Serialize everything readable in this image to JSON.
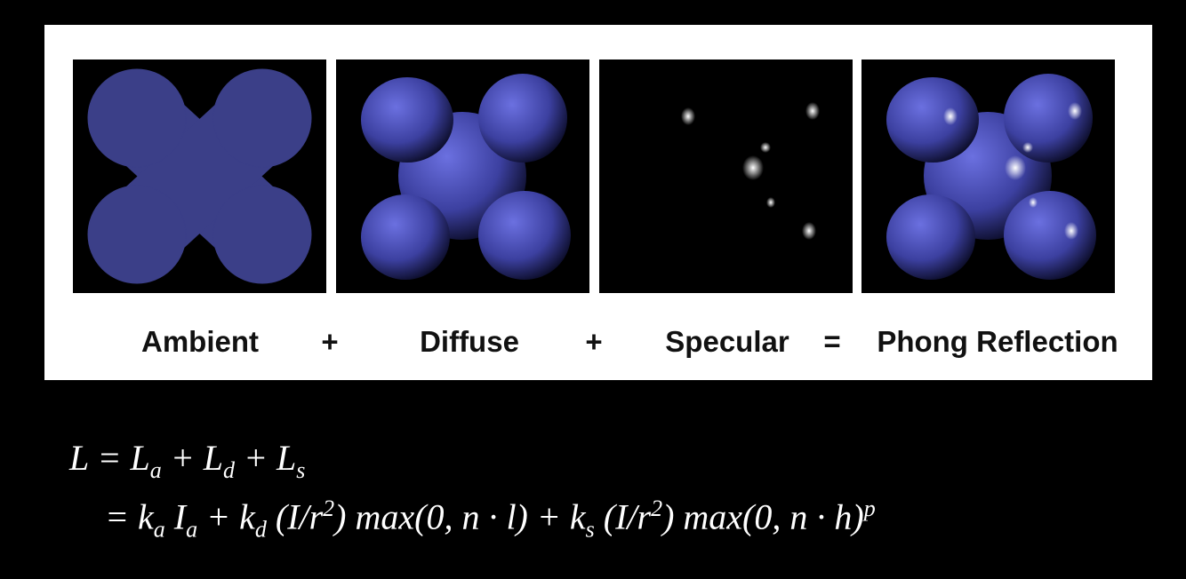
{
  "panel_labels": [
    "Ambient",
    "+",
    "Diffuse",
    "+",
    "Specular",
    "=",
    "Phong Reflection"
  ],
  "equations": [
    {
      "segments": [
        {
          "text": "L = L",
          "sub": "a"
        },
        {
          "text": " + L",
          "sub": "d"
        },
        {
          "text": " + L",
          "sub": "s"
        }
      ]
    },
    {
      "segments": [
        {
          "text": "= k",
          "sub": "a"
        },
        {
          "text": " I",
          "sub": "a"
        },
        {
          "text": " + k",
          "sub": "d"
        },
        {
          "text": " (I/r",
          "sup": "2"
        },
        {
          "text": ") max(0, n · l) + k",
          "sub": "s"
        },
        {
          "text": " (I/r",
          "sup": "2"
        },
        {
          "text": ") max(0, n · h)",
          "sup": "p"
        }
      ]
    }
  ]
}
